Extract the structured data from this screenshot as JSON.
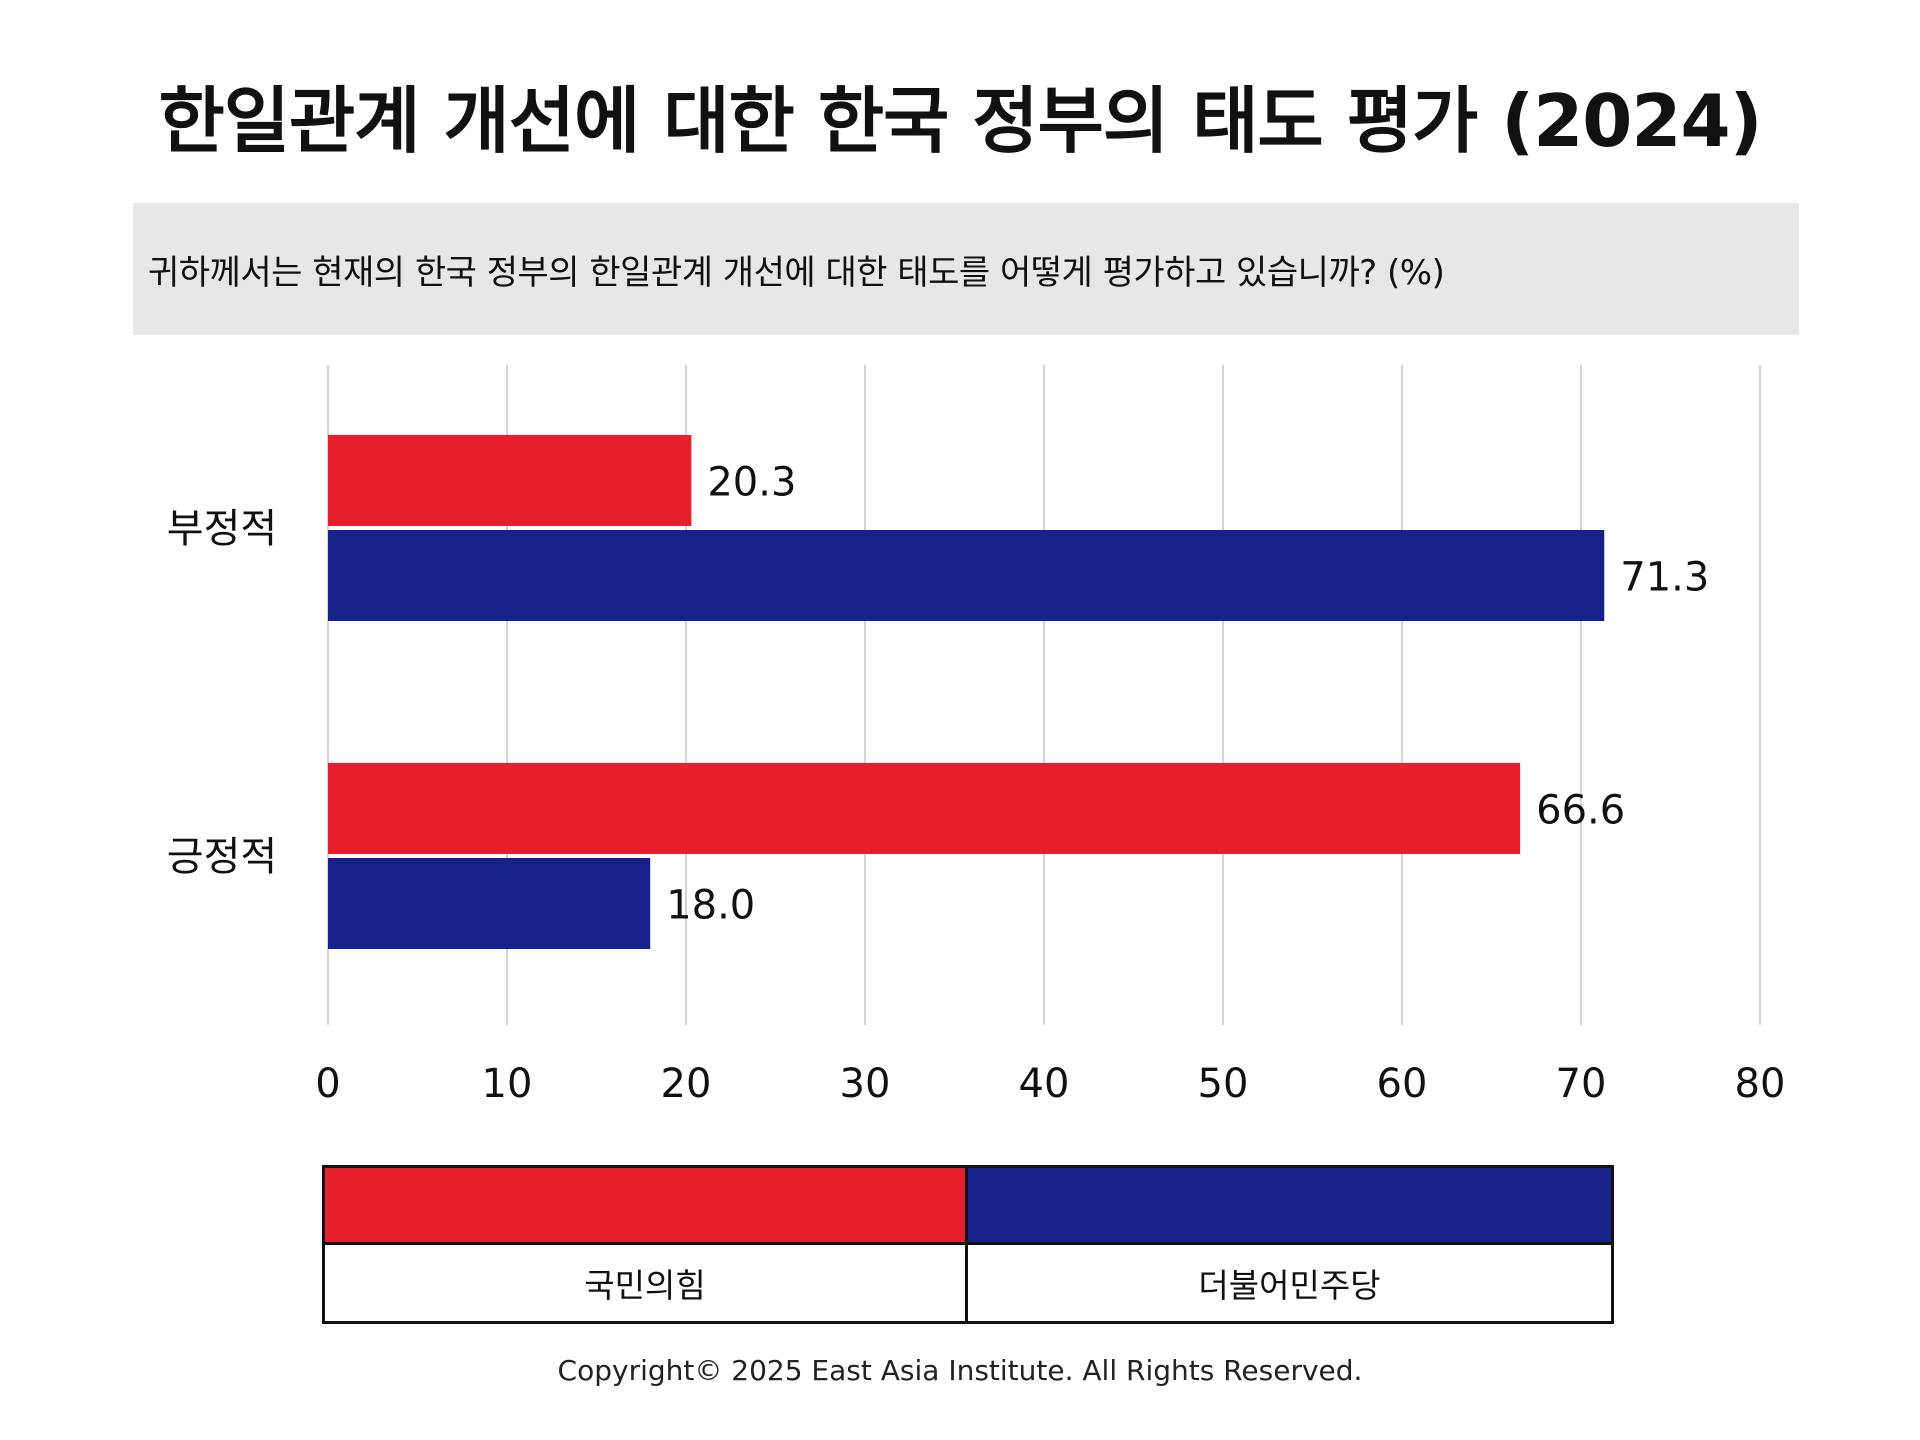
{
  "chart_data": {
    "type": "bar",
    "orientation": "horizontal",
    "title": "한일관계 개선에 대한 한국 정부의 태도 평가 (2024)",
    "subtitle": "귀하께서는 현재의 한국 정부의 한일관계 개선에 대한 태도를 어떻게 평가하고 있습니까?   (%)",
    "categories": [
      "부정적",
      "긍정적"
    ],
    "series": [
      {
        "name": "국민의힘",
        "color": "#e61e2d",
        "values": [
          20.3,
          66.6
        ]
      },
      {
        "name": "더불어민주당",
        "color": "#16228a",
        "values": [
          71.3,
          18.0
        ]
      }
    ],
    "value_labels": [
      [
        "20.3",
        "66.6"
      ],
      [
        "71.3",
        "18.0"
      ]
    ],
    "xlim": [
      0,
      80
    ],
    "xticks": [
      0,
      10,
      20,
      30,
      40,
      50,
      60,
      70,
      80
    ],
    "tick_labels": [
      "0",
      "10",
      "20",
      "30",
      "40",
      "50",
      "60",
      "70",
      "80"
    ],
    "grid": true,
    "legend_position": "bottom"
  },
  "footer": {
    "copyright": "Copyright© 2025 East Asia Institute. All Rights Reserved."
  }
}
